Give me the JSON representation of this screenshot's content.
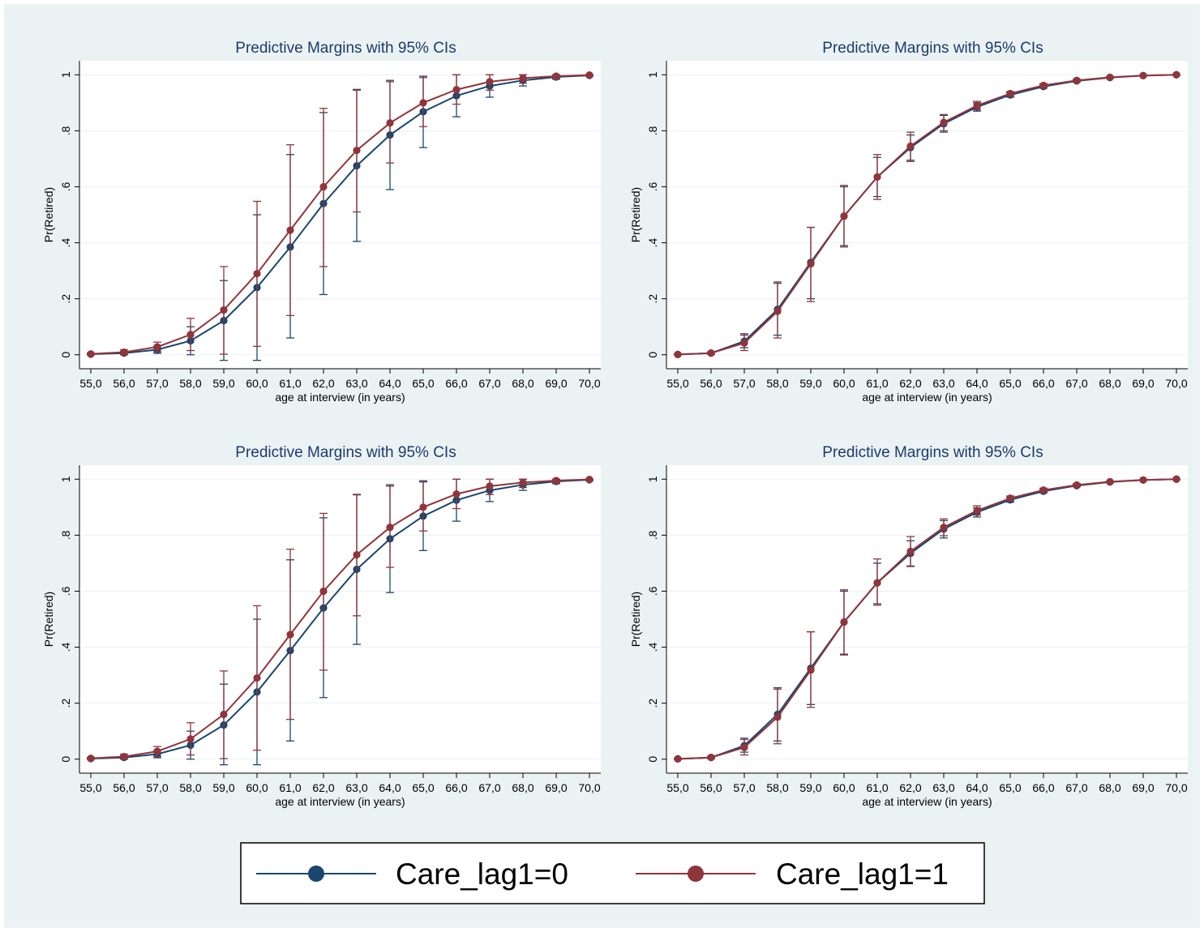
{
  "colors": {
    "background": "#eaf2f3",
    "plot_bg": "#ffffff",
    "title": "#1e3a6e",
    "series0": "#1a476f",
    "series1": "#90353b",
    "grid": "#eaf2f3",
    "text": "#000000"
  },
  "legend": {
    "items": [
      {
        "label": "Care_lag1=0",
        "color": "#1a476f"
      },
      {
        "label": "Care_lag1=1",
        "color": "#90353b"
      }
    ]
  },
  "chart_data": [
    {
      "type": "line",
      "title": "Predictive Margins with 95% CIs",
      "xlabel": "age at interview (in years)",
      "ylabel": "Pr(Retired)",
      "x": [
        55,
        56,
        57,
        58,
        59,
        60,
        61,
        62,
        63,
        64,
        65,
        66,
        67,
        68,
        69,
        70
      ],
      "xtick_labels": [
        "55,0",
        "56,0",
        "57,0",
        "58,0",
        "59,0",
        "60,0",
        "61,0",
        "62,0",
        "63,0",
        "64,0",
        "65,0",
        "66,0",
        "67,0",
        "68,0",
        "69,0",
        "70,0"
      ],
      "ytick_values": [
        0,
        0.2,
        0.4,
        0.6,
        0.8,
        1
      ],
      "ytick_labels": [
        "0",
        ".2",
        ".4",
        ".6",
        ".8",
        "1"
      ],
      "ylim": [
        -0.05,
        1.05
      ],
      "grid": true,
      "series": [
        {
          "name": "Care_lag1=0",
          "values": [
            0.002,
            0.006,
            0.018,
            0.05,
            0.122,
            0.24,
            0.385,
            0.54,
            0.675,
            0.785,
            0.868,
            0.925,
            0.96,
            0.98,
            0.992,
            0.998
          ],
          "ci_low": [
            0.0,
            0.0,
            0.005,
            0.0,
            -0.02,
            -0.02,
            0.06,
            0.215,
            0.405,
            0.59,
            0.74,
            0.85,
            0.92,
            0.96,
            0.984,
            0.995
          ],
          "ci_high": [
            0.004,
            0.012,
            0.03,
            0.1,
            0.265,
            0.5,
            0.715,
            0.865,
            0.945,
            0.98,
            0.995,
            1.0,
            1.0,
            1.0,
            1.0,
            1.0
          ]
        },
        {
          "name": "Care_lag1=1",
          "values": [
            0.003,
            0.009,
            0.028,
            0.072,
            0.16,
            0.29,
            0.445,
            0.6,
            0.73,
            0.828,
            0.9,
            0.947,
            0.975,
            0.988,
            0.995,
            0.999
          ],
          "ci_low": [
            0.0,
            0.0,
            0.01,
            0.015,
            0.002,
            0.03,
            0.14,
            0.315,
            0.51,
            0.685,
            0.815,
            0.895,
            0.945,
            0.97,
            0.987,
            0.996
          ],
          "ci_high": [
            0.006,
            0.018,
            0.045,
            0.13,
            0.315,
            0.548,
            0.75,
            0.88,
            0.948,
            0.975,
            0.99,
            1.0,
            1.0,
            1.0,
            1.0,
            1.0
          ]
        }
      ]
    },
    {
      "type": "line",
      "title": "Predictive Margins with 95% CIs",
      "xlabel": "age at interview (in years)",
      "ylabel": "Pr(Retired)",
      "x": [
        55,
        56,
        57,
        58,
        59,
        60,
        61,
        62,
        63,
        64,
        65,
        66,
        67,
        68,
        69,
        70
      ],
      "xtick_labels": [
        "55,0",
        "56,0",
        "57,0",
        "58,0",
        "59,0",
        "60,0",
        "61,0",
        "62,0",
        "63,0",
        "64,0",
        "65,0",
        "66,0",
        "67,0",
        "68,0",
        "69,0",
        "70,0"
      ],
      "ytick_values": [
        0,
        0.2,
        0.4,
        0.6,
        0.8,
        1
      ],
      "ytick_labels": [
        "0",
        ".2",
        ".4",
        ".6",
        ".8",
        "1"
      ],
      "ylim": [
        -0.05,
        1.05
      ],
      "grid": true,
      "series": [
        {
          "name": "Care_lag1=0",
          "values": [
            0.001,
            0.006,
            0.048,
            0.162,
            0.33,
            0.495,
            0.635,
            0.74,
            0.825,
            0.885,
            0.928,
            0.958,
            0.978,
            0.99,
            0.997,
            1.0
          ],
          "ci_low": [
            0.0,
            0.002,
            0.025,
            0.07,
            0.2,
            0.39,
            0.565,
            0.695,
            0.795,
            0.87,
            0.92,
            0.952,
            0.974,
            0.988,
            0.996,
            0.999
          ],
          "ci_high": [
            0.002,
            0.01,
            0.075,
            0.26,
            0.455,
            0.6,
            0.705,
            0.785,
            0.855,
            0.9,
            0.936,
            0.964,
            0.982,
            0.992,
            0.998,
            1.0
          ]
        },
        {
          "name": "Care_lag1=1",
          "values": [
            0.001,
            0.006,
            0.042,
            0.155,
            0.325,
            0.495,
            0.635,
            0.745,
            0.83,
            0.89,
            0.933,
            0.962,
            0.98,
            0.991,
            0.997,
            1.0
          ],
          "ci_low": [
            0.0,
            0.002,
            0.015,
            0.06,
            0.19,
            0.385,
            0.555,
            0.69,
            0.8,
            0.875,
            0.925,
            0.956,
            0.977,
            0.989,
            0.996,
            0.999
          ],
          "ci_high": [
            0.002,
            0.01,
            0.07,
            0.255,
            0.455,
            0.605,
            0.715,
            0.795,
            0.858,
            0.905,
            0.94,
            0.968,
            0.984,
            0.993,
            0.998,
            1.0
          ]
        }
      ]
    },
    {
      "type": "line",
      "title": "Predictive Margins with 95% CIs",
      "xlabel": "age at interview (in years)",
      "ylabel": "Pr(Retired)",
      "x": [
        55,
        56,
        57,
        58,
        59,
        60,
        61,
        62,
        63,
        64,
        65,
        66,
        67,
        68,
        69,
        70
      ],
      "xtick_labels": [
        "55,0",
        "56,0",
        "57,0",
        "58,0",
        "59,0",
        "60,0",
        "61,0",
        "62,0",
        "63,0",
        "64,0",
        "65,0",
        "66,0",
        "67,0",
        "68,0",
        "69,0",
        "70,0"
      ],
      "ytick_values": [
        0,
        0.2,
        0.4,
        0.6,
        0.8,
        1
      ],
      "ytick_labels": [
        "0",
        ".2",
        ".4",
        ".6",
        ".8",
        "1"
      ],
      "ylim": [
        -0.05,
        1.05
      ],
      "grid": true,
      "series": [
        {
          "name": "Care_lag1=0",
          "values": [
            0.002,
            0.006,
            0.018,
            0.05,
            0.122,
            0.24,
            0.388,
            0.54,
            0.678,
            0.787,
            0.868,
            0.925,
            0.96,
            0.98,
            0.992,
            0.998
          ],
          "ci_low": [
            0.0,
            0.0,
            0.005,
            0.0,
            -0.02,
            -0.02,
            0.065,
            0.22,
            0.41,
            0.595,
            0.745,
            0.85,
            0.92,
            0.96,
            0.984,
            0.995
          ],
          "ci_high": [
            0.004,
            0.012,
            0.03,
            0.1,
            0.268,
            0.5,
            0.712,
            0.862,
            0.944,
            0.98,
            0.994,
            1.0,
            1.0,
            1.0,
            1.0,
            1.0
          ]
        },
        {
          "name": "Care_lag1=1",
          "values": [
            0.003,
            0.009,
            0.028,
            0.072,
            0.16,
            0.29,
            0.445,
            0.6,
            0.73,
            0.828,
            0.9,
            0.947,
            0.975,
            0.988,
            0.995,
            0.999
          ],
          "ci_low": [
            0.0,
            0.0,
            0.01,
            0.015,
            0.002,
            0.032,
            0.142,
            0.318,
            0.512,
            0.685,
            0.815,
            0.895,
            0.945,
            0.97,
            0.987,
            0.996
          ],
          "ci_high": [
            0.006,
            0.018,
            0.045,
            0.13,
            0.315,
            0.548,
            0.75,
            0.878,
            0.946,
            0.975,
            0.99,
            1.0,
            1.0,
            1.0,
            1.0,
            1.0
          ]
        }
      ]
    },
    {
      "type": "line",
      "title": "Predictive Margins with 95% CIs",
      "xlabel": "age at interview (in years)",
      "ylabel": "Pr(Retired)",
      "x": [
        55,
        56,
        57,
        58,
        59,
        60,
        61,
        62,
        63,
        64,
        65,
        66,
        67,
        68,
        69,
        70
      ],
      "xtick_labels": [
        "55,0",
        "56,0",
        "57,0",
        "58,0",
        "59,0",
        "60,0",
        "61,0",
        "62,0",
        "63,0",
        "64,0",
        "65,0",
        "66,0",
        "67,0",
        "68,0",
        "69,0",
        "70,0"
      ],
      "ytick_values": [
        0,
        0.2,
        0.4,
        0.6,
        0.8,
        1
      ],
      "ytick_labels": [
        "0",
        ".2",
        ".4",
        ".6",
        ".8",
        "1"
      ],
      "ylim": [
        -0.05,
        1.05
      ],
      "grid": true,
      "series": [
        {
          "name": "Care_lag1=0",
          "values": [
            0.001,
            0.006,
            0.048,
            0.16,
            0.325,
            0.49,
            0.63,
            0.735,
            0.822,
            0.882,
            0.926,
            0.957,
            0.977,
            0.99,
            0.997,
            1.0
          ],
          "ci_low": [
            0.0,
            0.002,
            0.025,
            0.065,
            0.195,
            0.375,
            0.555,
            0.69,
            0.79,
            0.865,
            0.918,
            0.951,
            0.973,
            0.988,
            0.996,
            0.999
          ],
          "ci_high": [
            0.002,
            0.01,
            0.075,
            0.255,
            0.455,
            0.6,
            0.7,
            0.78,
            0.852,
            0.898,
            0.935,
            0.963,
            0.981,
            0.992,
            0.998,
            1.0
          ]
        },
        {
          "name": "Care_lag1=1",
          "values": [
            0.001,
            0.006,
            0.042,
            0.15,
            0.318,
            0.49,
            0.63,
            0.742,
            0.828,
            0.888,
            0.932,
            0.961,
            0.979,
            0.991,
            0.997,
            1.0
          ],
          "ci_low": [
            0.0,
            0.002,
            0.015,
            0.055,
            0.185,
            0.372,
            0.55,
            0.688,
            0.798,
            0.872,
            0.924,
            0.955,
            0.976,
            0.989,
            0.996,
            0.999
          ],
          "ci_high": [
            0.002,
            0.01,
            0.07,
            0.25,
            0.455,
            0.605,
            0.715,
            0.795,
            0.858,
            0.905,
            0.94,
            0.968,
            0.984,
            0.993,
            0.998,
            1.0
          ]
        }
      ]
    }
  ]
}
